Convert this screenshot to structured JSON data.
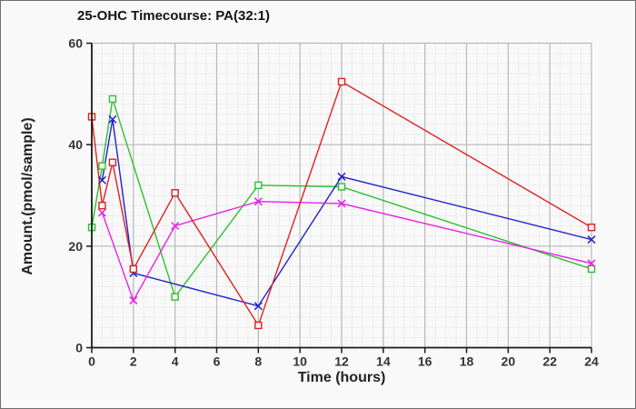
{
  "figure": {
    "background": "#f9f9f9",
    "border_color": "#6f6f6f"
  },
  "chart_data": {
    "type": "line",
    "title": "25-OHC Timecourse: PA(32:1)",
    "xlabel": "Time (hours)",
    "ylabel": "Amount.(pmol/sample)",
    "xlim": [
      0,
      24
    ],
    "ylim": [
      0,
      60
    ],
    "x_ticks": [
      0,
      2,
      4,
      6,
      8,
      10,
      12,
      14,
      16,
      18,
      20,
      22,
      24
    ],
    "y_ticks": [
      0,
      20,
      40,
      60
    ],
    "x_minor_step": 0.5,
    "y_minor_step": 2,
    "grid": {
      "major_color": "#b9b9b9",
      "minor_color": "#ececec"
    },
    "axis_color": "#1a1a1a",
    "tick_label_color": "#333333",
    "legend": "none",
    "series": [
      {
        "name": "series-green",
        "color": "#2fbf2f",
        "marker": "square",
        "points": [
          [
            0,
            23.7
          ],
          [
            0.5,
            35.8
          ],
          [
            1,
            49
          ],
          [
            4,
            10
          ],
          [
            8,
            32
          ],
          [
            12,
            31.7
          ],
          [
            24,
            15.5
          ]
        ]
      },
      {
        "name": "series-blue",
        "color": "#2222cc",
        "marker": "x",
        "points": [
          [
            0.5,
            33
          ],
          [
            1,
            45
          ],
          [
            2,
            14.7
          ],
          [
            8,
            8.2
          ],
          [
            12,
            33.7
          ],
          [
            24,
            21.3
          ]
        ]
      },
      {
        "name": "series-magenta",
        "color": "#e822e8",
        "marker": "x",
        "points": [
          [
            0.5,
            26.6
          ],
          [
            2,
            9.3
          ],
          [
            4,
            24
          ],
          [
            8,
            28.8
          ],
          [
            12,
            28.4
          ],
          [
            24,
            16.6
          ]
        ]
      },
      {
        "name": "series-red",
        "color": "#e02020",
        "marker": "square",
        "points": [
          [
            0,
            45.5
          ],
          [
            0.5,
            28
          ],
          [
            1,
            36.5
          ],
          [
            2,
            15.5
          ],
          [
            4,
            30.5
          ],
          [
            8,
            4.4
          ],
          [
            12,
            52.4
          ],
          [
            24,
            23.7
          ]
        ]
      }
    ]
  }
}
